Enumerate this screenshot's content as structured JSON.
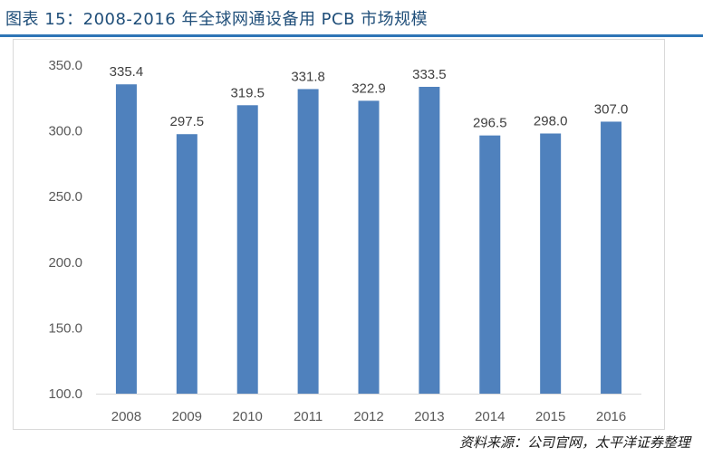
{
  "figure": {
    "title": "图表 15：2008-2016 年全球网通设备用 PCB 市场规模",
    "source": "资料来源：公司官网，太平洋证券整理"
  },
  "colors": {
    "bar": "#4f81bd",
    "title": "#1f4e79",
    "rule": "#2e75b6"
  },
  "chart_data": {
    "type": "bar",
    "categories": [
      "2008",
      "2009",
      "2010",
      "2011",
      "2012",
      "2013",
      "2014",
      "2015",
      "2016"
    ],
    "values": [
      335.4,
      297.5,
      319.5,
      331.8,
      322.9,
      333.5,
      296.5,
      298.0,
      307.0
    ],
    "value_labels": [
      "335.4",
      "297.5",
      "319.5",
      "331.8",
      "322.9",
      "333.5",
      "296.5",
      "298.0",
      "307.0"
    ],
    "yticks": [
      "100.0",
      "150.0",
      "200.0",
      "250.0",
      "300.0",
      "350.0"
    ],
    "ylim": [
      100,
      350
    ],
    "title": "",
    "xlabel": "",
    "ylabel": "",
    "grid": false,
    "legend": "none"
  }
}
